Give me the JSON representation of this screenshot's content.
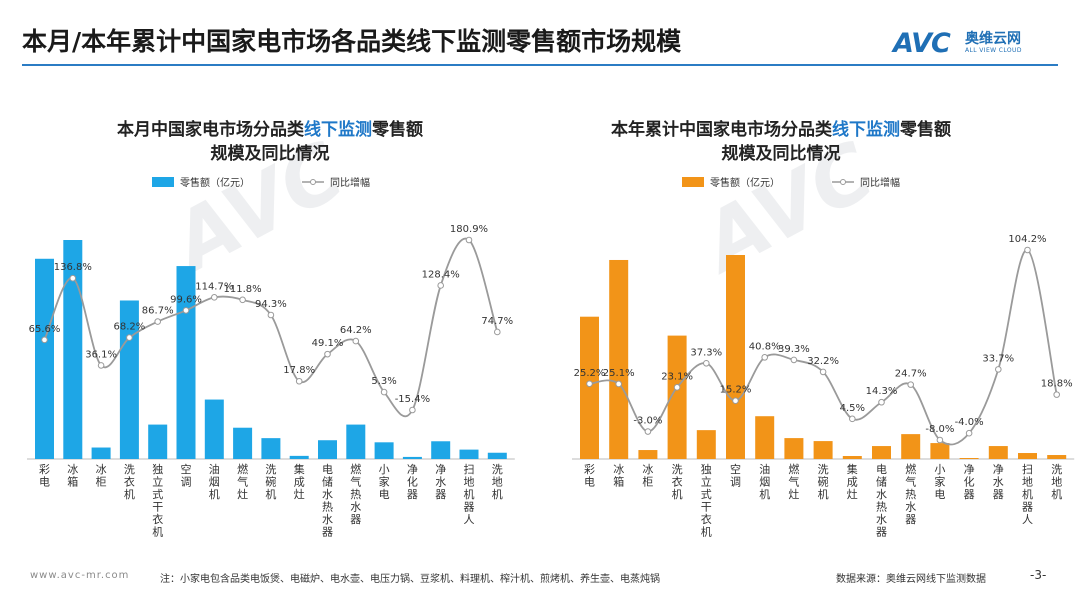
{
  "page": {
    "title": "本月/本年累计中国家电市场各品类线下监测零售额市场规模",
    "logo_mark": "AVC",
    "logo_cn": "奥维云网",
    "logo_en": "ALL VIEW CLOUD",
    "watermark": "AVC",
    "footer_site": "www.avc-mr.com",
    "footer_note": "注：小家电包含品类电饭煲、电磁炉、电水壶、电压力锅、豆浆机、料理机、榨汁机、煎烤机、养生壶、电蒸炖锅",
    "footer_source": "数据来源：奥维云网线下监测数据",
    "page_number": "-3-"
  },
  "colors": {
    "left_bar": "#1ea6e6",
    "right_bar": "#f29418",
    "line": "#9a9a9a",
    "accent": "#1f78c8"
  },
  "chart_data": [
    {
      "type": "bar",
      "title_prefix": "本月中国家电市场分品类",
      "title_highlight": "线下监测",
      "title_suffix": "零售额",
      "title_line2": "规模及同比情况",
      "legend": {
        "bar": "零售额（亿元）",
        "line": "同比增幅"
      },
      "categories": [
        "彩电",
        "冰箱",
        "冰柜",
        "洗衣机",
        "独立式干衣机",
        "空调",
        "油烟机",
        "燃气灶",
        "洗碗机",
        "集成灶",
        "电储水热水器",
        "燃气热水器",
        "小家电",
        "净化器",
        "净水器",
        "扫地机器人",
        "洗地机"
      ],
      "series": [
        {
          "name": "零售额（亿元）",
          "values": [
            19.2,
            21.0,
            1.1,
            15.2,
            3.3,
            18.5,
            5.7,
            3.0,
            2.0,
            0.3,
            1.8,
            3.3,
            1.6,
            0.2,
            1.7,
            0.9,
            0.6
          ]
        },
        {
          "name": "同比增幅",
          "values": [
            65.6,
            136.8,
            36.1,
            68.2,
            86.7,
            99.6,
            114.7,
            111.8,
            94.3,
            17.8,
            49.1,
            64.2,
            5.3,
            -15.4,
            128.4,
            180.9,
            74.7
          ]
        }
      ],
      "line_labels": [
        "65.6%",
        "136.8%",
        "36.1%",
        "68.2%",
        "86.7%",
        "99.6%",
        "114.7%",
        "111.8%",
        "94.3%",
        "17.8%",
        "49.1%",
        "64.2%",
        "5.3%",
        "-15.4%",
        "128.4%",
        "180.9%",
        "74.7%"
      ]
    },
    {
      "type": "bar",
      "title_prefix": "本年累计中国家电市场分品类",
      "title_highlight": "线下监测",
      "title_suffix": "零售额",
      "title_line2": "规模及同比情况",
      "legend": {
        "bar": "零售额（亿元）",
        "line": "同比增幅"
      },
      "categories": [
        "彩电",
        "冰箱",
        "冰柜",
        "洗衣机",
        "独立式干衣机",
        "空调",
        "油烟机",
        "燃气灶",
        "洗碗机",
        "集成灶",
        "电储水热水器",
        "燃气热水器",
        "小家电",
        "净化器",
        "净水器",
        "扫地机器人",
        "洗地机"
      ],
      "series": [
        {
          "name": "零售额（亿元）",
          "values": [
            143,
            200,
            9,
            124,
            29,
            205,
            43,
            21,
            18,
            3,
            13,
            25,
            16,
            1,
            13,
            6,
            4
          ]
        },
        {
          "name": "同比增幅",
          "values": [
            25.2,
            25.1,
            -3.0,
            23.1,
            37.3,
            15.2,
            40.8,
            39.3,
            32.2,
            4.5,
            14.3,
            24.7,
            -8.0,
            -4.0,
            33.7,
            104.2,
            18.8
          ]
        }
      ],
      "line_labels": [
        "25.2%",
        "25.1%",
        "-3.0%",
        "23.1%",
        "37.3%",
        "15.2%",
        "40.8%",
        "39.3%",
        "32.2%",
        "4.5%",
        "14.3%",
        "24.7%",
        "-8.0%",
        "-4.0%",
        "33.7%",
        "104.2%",
        "18.8%"
      ]
    }
  ]
}
